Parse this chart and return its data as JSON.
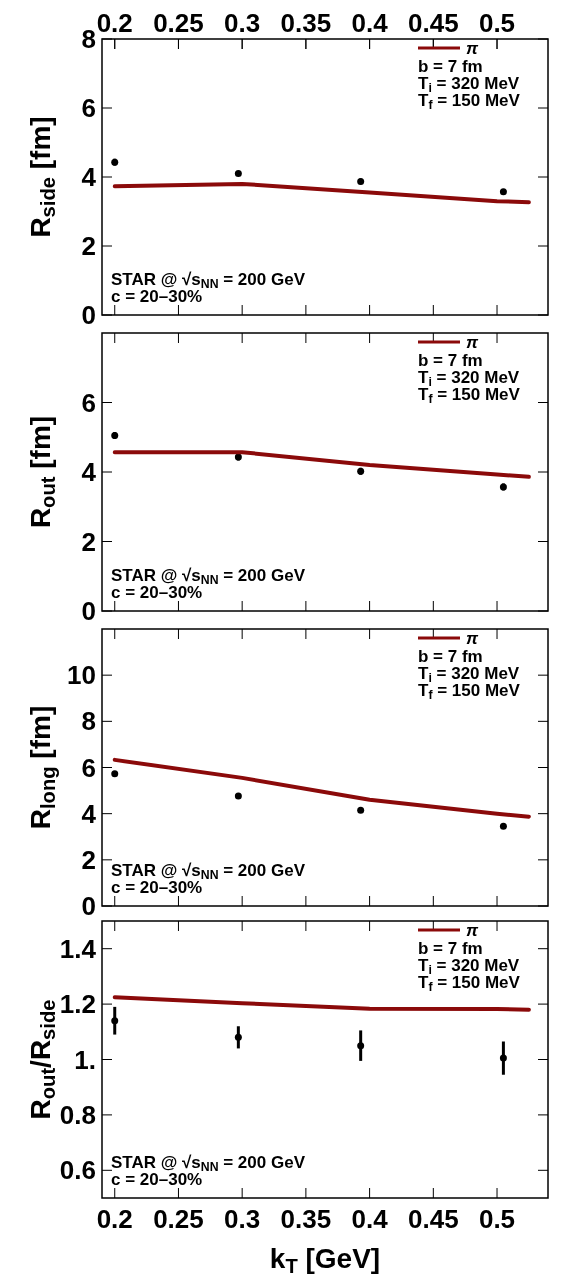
{
  "chart_data": [
    {
      "type": "scatter",
      "ylabel": "R$_{side}$ [fm]",
      "xlim": [
        0.19,
        0.54
      ],
      "xticks": [
        0.2,
        0.25,
        0.3,
        0.35,
        0.4,
        0.45,
        0.5
      ],
      "x2lim": [
        0.19,
        0.54
      ],
      "x2ticks": [
        0.2,
        0.25,
        0.3,
        0.35,
        0.4,
        0.45,
        0.5
      ],
      "ylim": [
        0,
        8
      ],
      "yticks": [
        0,
        2,
        4,
        6,
        8
      ],
      "tick_labels": "y",
      "legend": "top right",
      "marker": "circle",
      "series": [
        {
          "color": "#000000",
          "x": [
            0.2,
            0.297,
            0.393,
            0.505
          ],
          "values": [
            4.43,
            4.1,
            3.87,
            3.57
          ],
          "errors": [
            0.1,
            0.06,
            0.08,
            0.08
          ]
        },
        {
          "type": "line",
          "marker": "none",
          "name": "π",
          "color": "#8b0a0a",
          "x": [
            0.2,
            0.3,
            0.4,
            0.5,
            0.525
          ],
          "values": [
            3.73,
            3.8,
            3.55,
            3.3,
            3.27
          ]
        }
      ],
      "annotations": [
        "b  = 7 fm",
        "T$_{i}$ = 320 MeV",
        "T$_{f}$ = 150 MeV",
        "STAR @ √s$_{NN}$ = 200 GeV",
        "c = 20–30%"
      ]
    },
    {
      "type": "scatter",
      "ylabel": "R$_{out}$ [fm]",
      "xlim": [
        0.19,
        0.54
      ],
      "xticks": [
        0.2,
        0.25,
        0.3,
        0.35,
        0.4,
        0.45,
        0.5
      ],
      "ylim": [
        0,
        8
      ],
      "yticks": [
        0,
        2,
        4,
        6
      ],
      "tick_labels": "y",
      "legend": "top right",
      "marker": "circle",
      "series": [
        {
          "color": "#000000",
          "x": [
            0.2,
            0.297,
            0.393,
            0.505
          ],
          "values": [
            5.05,
            4.43,
            4.02,
            3.57
          ],
          "errors": [
            0.1,
            0.1,
            0.1,
            0.1
          ]
        },
        {
          "type": "line",
          "marker": "none",
          "name": "π",
          "color": "#8b0a0a",
          "x": [
            0.2,
            0.3,
            0.4,
            0.5,
            0.525
          ],
          "values": [
            4.57,
            4.57,
            4.2,
            3.93,
            3.86
          ]
        }
      ],
      "annotations": [
        "b  = 7 fm",
        "T$_{i}$ = 320 MeV",
        "T$_{f}$ = 150 MeV",
        "STAR @ √s$_{NN}$ = 200 GeV",
        "c = 20–30%"
      ]
    },
    {
      "type": "scatter",
      "ylabel": "R$_{long}$ [fm]",
      "xlim": [
        0.19,
        0.54
      ],
      "xticks": [
        0.2,
        0.25,
        0.3,
        0.35,
        0.4,
        0.45,
        0.5
      ],
      "ylim": [
        0,
        12
      ],
      "yticks": [
        0,
        2,
        4,
        6,
        8,
        10
      ],
      "tick_labels": "y",
      "legend": "top right",
      "marker": "circle",
      "series": [
        {
          "color": "#000000",
          "x": [
            0.2,
            0.297,
            0.393,
            0.505
          ],
          "values": [
            5.73,
            4.77,
            4.15,
            3.45
          ],
          "errors": [
            0.1,
            0.08,
            0.1,
            0.1
          ]
        },
        {
          "type": "line",
          "marker": "none",
          "name": "π",
          "color": "#8b0a0a",
          "x": [
            0.2,
            0.3,
            0.4,
            0.5,
            0.525
          ],
          "values": [
            6.33,
            5.55,
            4.6,
            4.0,
            3.87
          ]
        }
      ],
      "annotations": [
        "b  = 7 fm",
        "T$_{i}$ = 320 MeV",
        "T$_{f}$ = 150 MeV",
        "STAR @ √s$_{NN}$ = 200 GeV",
        "c = 20–30%"
      ]
    },
    {
      "type": "scatter",
      "ylabel": "R$_{out}$/R$_{side}$",
      "xlabel": "k$_{T}$ [GeV]",
      "xlim": [
        0.19,
        0.54
      ],
      "xticks": [
        0.2,
        0.25,
        0.3,
        0.35,
        0.4,
        0.45,
        0.5
      ],
      "ylim": [
        0.5,
        1.5
      ],
      "yticks": [
        0.6,
        0.8,
        {
          "value": 1.0,
          "label": "1."
        },
        1.2,
        1.4
      ],
      "legend": "top right",
      "marker": "circle",
      "series": [
        {
          "color": "#000000",
          "x": [
            0.2,
            0.297,
            0.393,
            0.505
          ],
          "values": [
            1.14,
            1.08,
            1.05,
            1.005
          ],
          "errors": [
            0.05,
            0.04,
            0.055,
            0.06
          ]
        },
        {
          "type": "line",
          "marker": "none",
          "name": "π",
          "color": "#8b0a0a",
          "x": [
            0.2,
            0.3,
            0.4,
            0.5,
            0.525
          ],
          "values": [
            1.225,
            1.203,
            1.183,
            1.182,
            1.18
          ]
        }
      ],
      "annotations": [
        "b  = 7 fm",
        "T$_{i}$ = 320 MeV",
        "T$_{f}$ = 150 MeV",
        "STAR @ √s$_{NN}$ = 200 GeV",
        "c = 20–30%"
      ]
    }
  ]
}
